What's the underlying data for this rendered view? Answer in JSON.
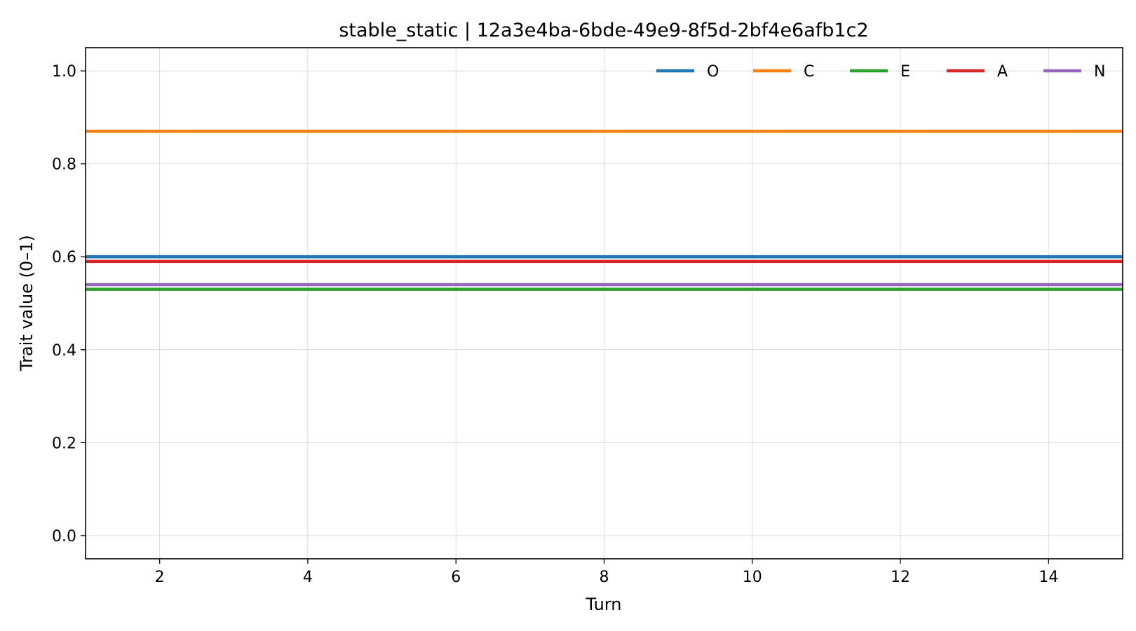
{
  "chart_data": {
    "type": "line",
    "title": "stable_static | 12a3e4ba-6bde-49e9-8f5d-2bf4e6afb1c2",
    "xlabel": "Turn",
    "ylabel": "Trait value (0–1)",
    "xlim": [
      1,
      15
    ],
    "ylim": [
      -0.05,
      1.05
    ],
    "x_ticks": [
      2,
      4,
      6,
      8,
      10,
      12,
      14
    ],
    "y_ticks": [
      0.0,
      0.2,
      0.4,
      0.6,
      0.8,
      1.0
    ],
    "y_tick_labels": [
      "0.0",
      "0.2",
      "0.4",
      "0.6",
      "0.8",
      "1.0"
    ],
    "grid": true,
    "legend": {
      "placement": "top-right",
      "columns": 5
    },
    "x": [
      1,
      15
    ],
    "series": [
      {
        "name": "O",
        "color": "#1f77b4",
        "values": [
          0.6,
          0.6
        ]
      },
      {
        "name": "C",
        "color": "#ff7f0e",
        "values": [
          0.87,
          0.87
        ]
      },
      {
        "name": "E",
        "color": "#2ca02c",
        "values": [
          0.53,
          0.53
        ]
      },
      {
        "name": "A",
        "color": "#d62728",
        "values": [
          0.59,
          0.59
        ]
      },
      {
        "name": "N",
        "color": "#9467bd",
        "values": [
          0.54,
          0.54
        ]
      }
    ]
  }
}
